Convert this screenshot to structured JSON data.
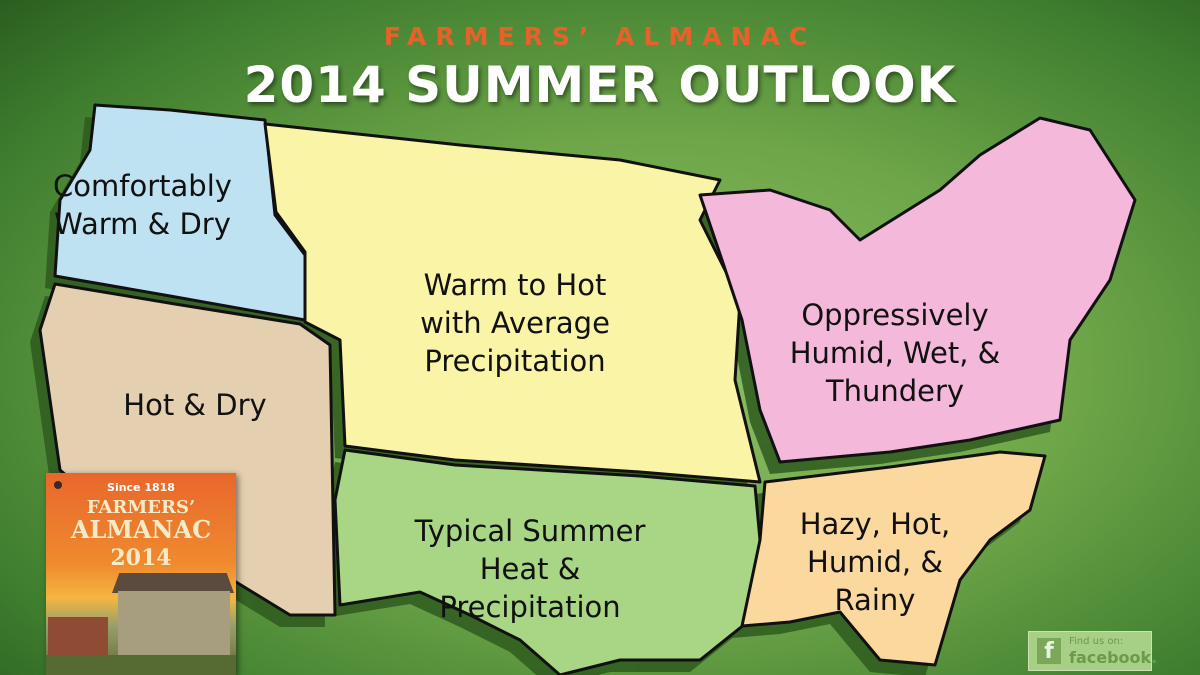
{
  "header": {
    "brand": "FARMERS’ ALMANAC",
    "title": "2014 SUMMER OUTLOOK"
  },
  "regions": [
    {
      "id": "northwest",
      "label": "Comfortably\nWarm & Dry",
      "color": "#bfe2f3"
    },
    {
      "id": "southwest",
      "label": "Hot & Dry",
      "color": "#e5cfb1"
    },
    {
      "id": "north-central",
      "label": "Warm to Hot\nwith Average\nPrecipitation",
      "color": "#faf4a6"
    },
    {
      "id": "northeast",
      "label": "Oppressively\nHumid, Wet, &\nThundery",
      "color": "#f3b8da"
    },
    {
      "id": "south-central",
      "label": "Typical Summer\nHeat &\nPrecipitation",
      "color": "#a9d685"
    },
    {
      "id": "southeast",
      "label": "Hazy, Hot,\nHumid, &\nRainy",
      "color": "#fbd89e"
    }
  ],
  "cover": {
    "since": "Since 1818",
    "line1": "FARMERS’",
    "line2": "ALMANAC",
    "year": "2014"
  },
  "facebook": {
    "line1": "Find us on:",
    "line2": "facebook.",
    "icon": "facebook-icon"
  }
}
